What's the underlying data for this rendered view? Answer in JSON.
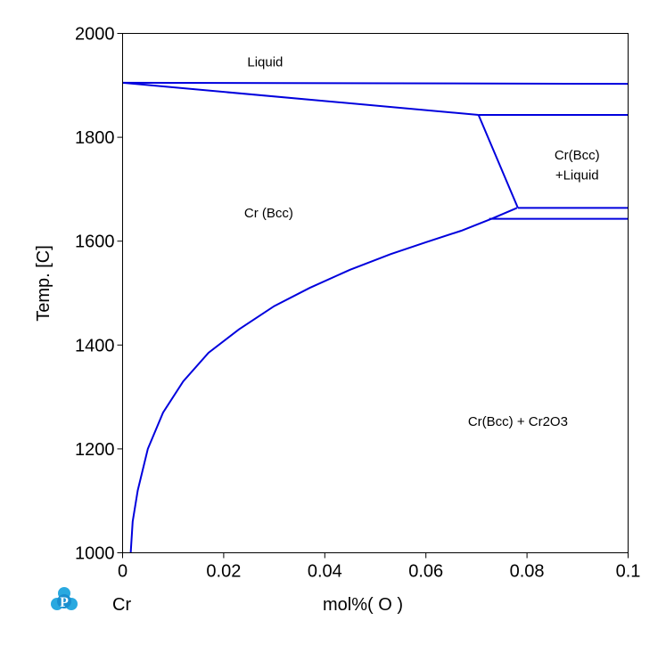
{
  "chart_data": {
    "type": "line",
    "title": "",
    "xlabel": "mol%(  O  )",
    "ylabel": "Temp.  [C]",
    "xlim": [
      0,
      0.1
    ],
    "ylim": [
      1000,
      2000
    ],
    "x_ticks": [
      "0",
      "0.02",
      "0.04",
      "0.06",
      "0.08",
      "0.1"
    ],
    "y_ticks": [
      "1000",
      "1200",
      "1400",
      "1600",
      "1800",
      "2000"
    ],
    "x_tick_values": [
      0,
      0.02,
      0.04,
      0.06,
      0.08,
      0.1
    ],
    "y_tick_values": [
      1000,
      1200,
      1400,
      1600,
      1800,
      2000
    ],
    "left_component": "Cr",
    "grid": false,
    "line_color": "#0000dd",
    "region_labels": [
      {
        "text": "Liquid",
        "x": 0.0282,
        "y": 1945
      },
      {
        "text": "Cr(Bcc)",
        "x": 0.0899,
        "y": 1766
      },
      {
        "text": "+Liquid",
        "x": 0.0899,
        "y": 1727
      },
      {
        "text": "Cr (Bcc)",
        "x": 0.0289,
        "y": 1654
      },
      {
        "text": "Cr(Bcc) + Cr2O3",
        "x": 0.0782,
        "y": 1253
      }
    ],
    "series": [
      {
        "values": [
          [
            0,
            1905
          ],
          [
            0.1,
            1903
          ]
        ]
      },
      {
        "values": [
          [
            0,
            1905
          ],
          [
            0.0704,
            1843
          ]
        ]
      },
      {
        "values": [
          [
            0.0704,
            1843
          ],
          [
            0.1,
            1843
          ]
        ]
      },
      {
        "values": [
          [
            0.0704,
            1843
          ],
          [
            0.0782,
            1664
          ]
        ]
      },
      {
        "values": [
          [
            0.0782,
            1664
          ],
          [
            0.1,
            1664
          ]
        ]
      },
      {
        "values": [
          [
            0.0725,
            1643
          ],
          [
            0.1,
            1643
          ]
        ]
      },
      {
        "values": [
          [
            0.0016,
            1000
          ],
          [
            0.002,
            1060
          ],
          [
            0.003,
            1120
          ],
          [
            0.005,
            1200
          ],
          [
            0.008,
            1270
          ],
          [
            0.012,
            1330
          ],
          [
            0.017,
            1385
          ],
          [
            0.023,
            1430
          ],
          [
            0.03,
            1475
          ],
          [
            0.037,
            1510
          ],
          [
            0.045,
            1545
          ],
          [
            0.053,
            1575
          ],
          [
            0.06,
            1598
          ],
          [
            0.067,
            1620
          ],
          [
            0.073,
            1643
          ],
          [
            0.078,
            1664
          ]
        ]
      }
    ]
  }
}
